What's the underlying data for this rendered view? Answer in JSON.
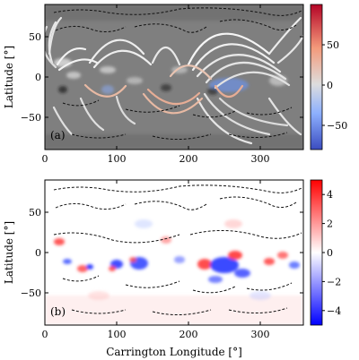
{
  "figure": {
    "xlabel": "Carrington Longitude [°]",
    "ylabel": "Latitude [°]"
  },
  "chart_data": [
    {
      "type": "heatmap",
      "panel": "(a)",
      "xlabel": "",
      "ylabel": "Latitude [°]",
      "xlim": [
        0,
        360
      ],
      "ylim": [
        -90,
        90
      ],
      "xticks": [
        0,
        100,
        200,
        300
      ],
      "yticks": [
        -50,
        0,
        50
      ],
      "colorbar": {
        "range": [
          -80,
          100
        ],
        "ticks": [
          -50,
          0,
          50
        ],
        "tick_labels": [
          "−50",
          "0",
          "50"
        ],
        "colormap": "coolwarm",
        "low_color": "#3b4cc0",
        "mid_color": "#dddddd",
        "high_color": "#b40426"
      },
      "background_color": "#7f7f7f",
      "overlays": [
        "magnetic field lines (white/orange)",
        "dashed contours (black)"
      ]
    },
    {
      "type": "heatmap",
      "panel": "(b)",
      "xlabel": "Carrington Longitude [°]",
      "ylabel": "Latitude [°]",
      "xlim": [
        0,
        360
      ],
      "ylim": [
        -90,
        90
      ],
      "xticks": [
        0,
        100,
        200,
        300
      ],
      "yticks": [
        -50,
        0,
        50
      ],
      "colorbar": {
        "range": [
          -5,
          5
        ],
        "ticks": [
          -4,
          -2,
          0,
          2,
          4
        ],
        "tick_labels": [
          "−4",
          "−2",
          "0",
          "2",
          "4"
        ],
        "colormap": "bwr",
        "low_color": "#0000ff",
        "mid_color": "#ffffff",
        "high_color": "#ff0000"
      },
      "background_color": "#ffffff",
      "overlays": [
        "dashed contours (black)"
      ]
    }
  ]
}
